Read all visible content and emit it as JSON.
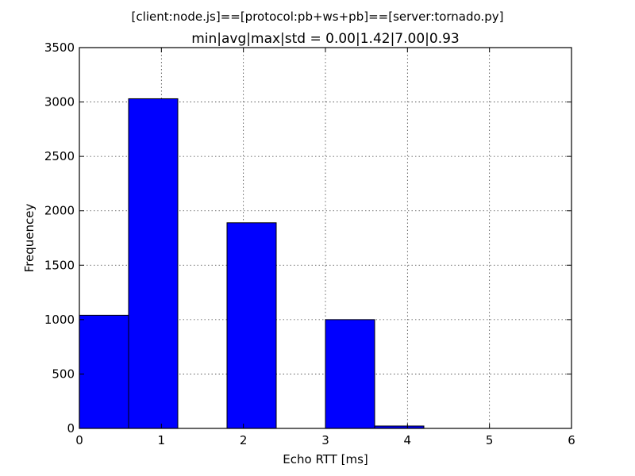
{
  "chart_data": {
    "type": "bar",
    "suptitle": "[client:node.js]==[protocol:pb+ws+pb]==[server:tornado.py]",
    "title": "min|avg|max|std = 0.00|1.42|7.00|0.93",
    "xlabel": "Echo RTT [ms]",
    "ylabel": "Frequencey",
    "xlim": [
      0,
      6
    ],
    "ylim": [
      0,
      3500
    ],
    "xticks": [
      "0",
      "1",
      "2",
      "3",
      "4",
      "5",
      "6"
    ],
    "yticks": [
      "0",
      "500",
      "1000",
      "1500",
      "2000",
      "2500",
      "3000",
      "3500"
    ],
    "grid": true,
    "bar_color": "#0000ff",
    "bins": [
      {
        "x0": 0.0,
        "x1": 0.6,
        "value": 1040
      },
      {
        "x0": 0.6,
        "x1": 1.2,
        "value": 3030
      },
      {
        "x0": 1.2,
        "x1": 1.8,
        "value": 0
      },
      {
        "x0": 1.8,
        "x1": 2.4,
        "value": 1890
      },
      {
        "x0": 2.4,
        "x1": 3.0,
        "value": 0
      },
      {
        "x0": 3.0,
        "x1": 3.6,
        "value": 1000
      },
      {
        "x0": 3.6,
        "x1": 4.2,
        "value": 22
      }
    ]
  }
}
